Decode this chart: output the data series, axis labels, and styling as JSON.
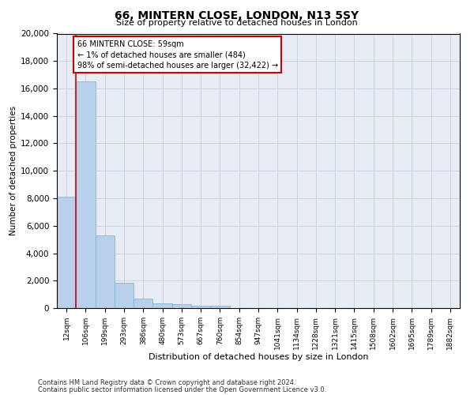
{
  "title": "66, MINTERN CLOSE, LONDON, N13 5SY",
  "subtitle": "Size of property relative to detached houses in London",
  "xlabel": "Distribution of detached houses by size in London",
  "ylabel": "Number of detached properties",
  "bar_color": "#b8d0ea",
  "bar_edge_color": "#7aadd4",
  "categories": [
    "12sqm",
    "106sqm",
    "199sqm",
    "293sqm",
    "386sqm",
    "480sqm",
    "573sqm",
    "667sqm",
    "760sqm",
    "854sqm",
    "947sqm",
    "1041sqm",
    "1134sqm",
    "1228sqm",
    "1321sqm",
    "1415sqm",
    "1508sqm",
    "1602sqm",
    "1695sqm",
    "1789sqm",
    "1882sqm"
  ],
  "values": [
    8100,
    16500,
    5300,
    1850,
    700,
    350,
    270,
    200,
    170,
    0,
    0,
    0,
    0,
    0,
    0,
    0,
    0,
    0,
    0,
    0,
    0
  ],
  "ylim": [
    0,
    20000
  ],
  "yticks": [
    0,
    2000,
    4000,
    6000,
    8000,
    10000,
    12000,
    14000,
    16000,
    18000,
    20000
  ],
  "annotation_text": "66 MINTERN CLOSE: 59sqm\n← 1% of detached houses are smaller (484)\n98% of semi-detached houses are larger (32,422) →",
  "annotation_box_color": "#ffffff",
  "annotation_box_edge": "#cc0000",
  "vline_color": "#cc0000",
  "grid_color": "#c8cfe0",
  "background_color": "#e8edf5",
  "footer_line1": "Contains HM Land Registry data © Crown copyright and database right 2024.",
  "footer_line2": "Contains public sector information licensed under the Open Government Licence v3.0."
}
